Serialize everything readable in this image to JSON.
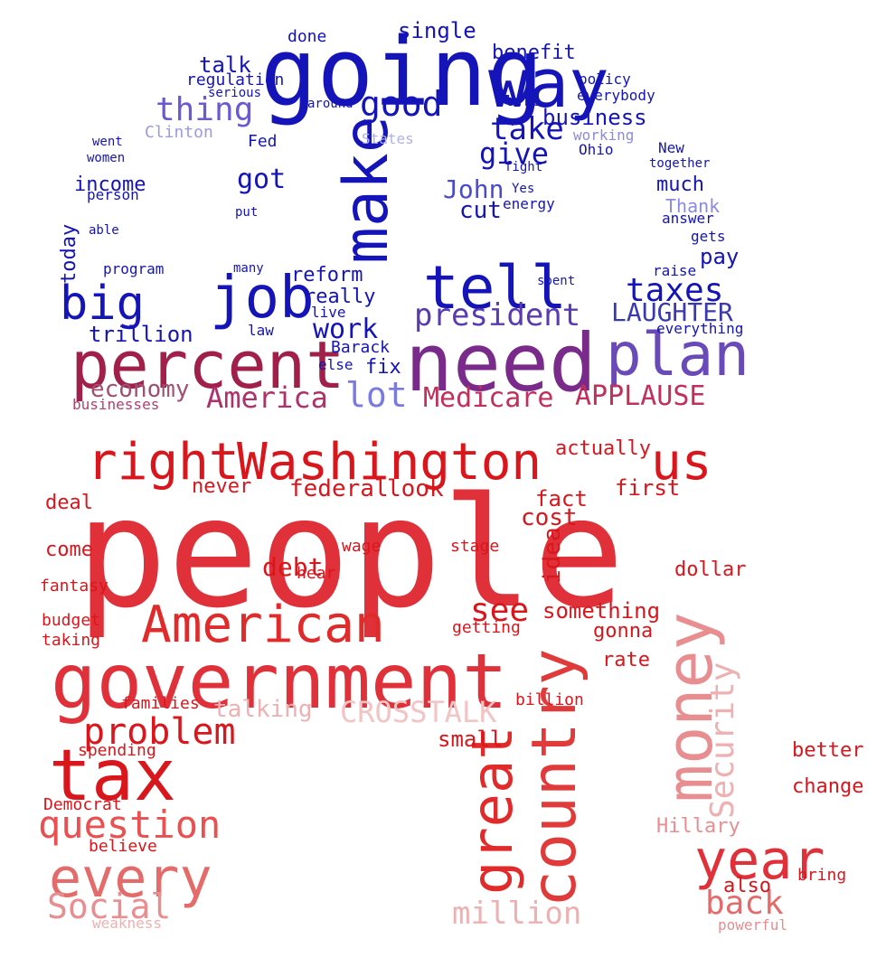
{
  "words": [
    {
      "t": "people",
      "c": "#e0313a"
    },
    {
      "t": "government",
      "c": "#e0313a"
    },
    {
      "t": "tax",
      "c": "#d9161c"
    },
    {
      "t": "money",
      "c": "#e88d90"
    },
    {
      "t": "country",
      "c": "#e03a3a"
    },
    {
      "t": "great",
      "c": "#e12a2a"
    },
    {
      "t": "year",
      "c": "#e0313a"
    },
    {
      "t": "every",
      "c": "#e56a6a"
    },
    {
      "t": "question",
      "c": "#ea5050"
    },
    {
      "t": "American",
      "c": "#e12a2a"
    },
    {
      "t": "right",
      "c": "#d9161c"
    },
    {
      "t": "Washington",
      "c": "#d9161c"
    },
    {
      "t": "us",
      "c": "#d9161c"
    },
    {
      "t": "problem",
      "c": "#d9161c"
    },
    {
      "t": "Social",
      "c": "#e88d90"
    },
    {
      "t": "Security",
      "c": "#eeb0b0"
    },
    {
      "t": "CROSSTALK",
      "c": "#f2c4c4"
    },
    {
      "t": "million",
      "c": "#eeb0b0"
    },
    {
      "t": "back",
      "c": "#e56a6a"
    },
    {
      "t": "see",
      "c": "#d9161c"
    },
    {
      "t": "debt",
      "c": "#d9161c"
    },
    {
      "t": "talking",
      "c": "#eeb0b0"
    },
    {
      "t": "federal",
      "c": "#d9161c"
    },
    {
      "t": "look",
      "c": "#d9161c"
    },
    {
      "t": "deal",
      "c": "#d9161c"
    },
    {
      "t": "come",
      "c": "#d9161c"
    },
    {
      "t": "never",
      "c": "#d9161c"
    },
    {
      "t": "cost",
      "c": "#d9161c"
    },
    {
      "t": "fact",
      "c": "#d9161c"
    },
    {
      "t": "idea",
      "c": "#d9161c"
    },
    {
      "t": "something",
      "c": "#d9161c"
    },
    {
      "t": "gonna",
      "c": "#d9161c"
    },
    {
      "t": "rate",
      "c": "#d9161c"
    },
    {
      "t": "dollar",
      "c": "#d9161c"
    },
    {
      "t": "first",
      "c": "#d9161c"
    },
    {
      "t": "actually",
      "c": "#d9161c"
    },
    {
      "t": "better",
      "c": "#d9161c"
    },
    {
      "t": "change",
      "c": "#d9161c"
    },
    {
      "t": "Hillary",
      "c": "#e88d90"
    },
    {
      "t": "bring",
      "c": "#d9161c"
    },
    {
      "t": "also",
      "c": "#d9161c"
    },
    {
      "t": "powerful",
      "c": "#e88d90"
    },
    {
      "t": "small",
      "c": "#d9161c"
    },
    {
      "t": "spending",
      "c": "#d9161c"
    },
    {
      "t": "believe",
      "c": "#d9161c"
    },
    {
      "t": "families",
      "c": "#d9161c"
    },
    {
      "t": "budget",
      "c": "#d9161c"
    },
    {
      "t": "fantasy",
      "c": "#d9161c"
    },
    {
      "t": "taking",
      "c": "#d9161c"
    },
    {
      "t": "hear",
      "c": "#d9161c"
    },
    {
      "t": "wage",
      "c": "#d9161c"
    },
    {
      "t": "stage",
      "c": "#d9161c"
    },
    {
      "t": "getting",
      "c": "#d9161c"
    },
    {
      "t": "billion",
      "c": "#d9161c"
    },
    {
      "t": "Democrat",
      "c": "#d9161c"
    },
    {
      "t": "weakness",
      "c": "#eeb0b0"
    },
    {
      "t": "going",
      "c": "#1414b8"
    },
    {
      "t": "way",
      "c": "#1414b8"
    },
    {
      "t": "make",
      "c": "#1414b8"
    },
    {
      "t": "job",
      "c": "#1414b8"
    },
    {
      "t": "need",
      "c": "#7a2a8a"
    },
    {
      "t": "percent",
      "c": "#a0204a"
    },
    {
      "t": "plan",
      "c": "#6a4ab8"
    },
    {
      "t": "tell",
      "c": "#1414b8"
    },
    {
      "t": "big",
      "c": "#1414b8"
    },
    {
      "t": "good",
      "c": "#1414b8"
    },
    {
      "t": "thing",
      "c": "#6a5ad0"
    },
    {
      "t": "take",
      "c": "#1414b8"
    },
    {
      "t": "give",
      "c": "#1414b8"
    },
    {
      "t": "president",
      "c": "#5a3ab0"
    },
    {
      "t": "taxes",
      "c": "#1414b8"
    },
    {
      "t": "LAUGHTER",
      "c": "#3a3ab0"
    },
    {
      "t": "America",
      "c": "#b0306a"
    },
    {
      "t": "lot",
      "c": "#7a7ae0"
    },
    {
      "t": "Medicare",
      "c": "#c0305a"
    },
    {
      "t": "APPLAUSE",
      "c": "#c0305a"
    },
    {
      "t": "economy",
      "c": "#a05070"
    },
    {
      "t": "work",
      "c": "#1414b8"
    },
    {
      "t": "trillion",
      "c": "#1414b8"
    },
    {
      "t": "John",
      "c": "#4a4ad0"
    },
    {
      "t": "cut",
      "c": "#1414b8"
    },
    {
      "t": "got",
      "c": "#1414b8"
    },
    {
      "t": "pay",
      "c": "#1414b8"
    },
    {
      "t": "talk",
      "c": "#1414b8"
    },
    {
      "t": "business",
      "c": "#1414b8"
    },
    {
      "t": "single",
      "c": "#1414b8"
    },
    {
      "t": "benefit",
      "c": "#1414b8"
    },
    {
      "t": "reform",
      "c": "#1414b8"
    },
    {
      "t": "really",
      "c": "#1414b8"
    },
    {
      "t": "income",
      "c": "#1414b8"
    },
    {
      "t": "today",
      "c": "#1414b8"
    },
    {
      "t": "fix",
      "c": "#1414b8"
    },
    {
      "t": "much",
      "c": "#1414b8"
    },
    {
      "t": "raise",
      "c": "#1414b8"
    },
    {
      "t": "everything",
      "c": "#1414b8"
    },
    {
      "t": "regulation",
      "c": "#1414b8"
    },
    {
      "t": "policy",
      "c": "#1414b8"
    },
    {
      "t": "everybody",
      "c": "#1414b8"
    },
    {
      "t": "Clinton",
      "c": "#9a9ae0"
    },
    {
      "t": "Thank",
      "c": "#8a8ae0"
    },
    {
      "t": "States",
      "c": "#b0b0e8"
    },
    {
      "t": "Fed",
      "c": "#1414b8"
    },
    {
      "t": "Barack",
      "c": "#1414b8"
    },
    {
      "t": "businesses",
      "c": "#b04070"
    },
    {
      "t": "energy",
      "c": "#1414b8"
    },
    {
      "t": "Ohio",
      "c": "#1414b8"
    },
    {
      "t": "working",
      "c": "#8a8ae0"
    },
    {
      "t": "New",
      "c": "#1414b8"
    },
    {
      "t": "together",
      "c": "#1414b8"
    },
    {
      "t": "answer",
      "c": "#1414b8"
    },
    {
      "t": "gets",
      "c": "#1414b8"
    },
    {
      "t": "program",
      "c": "#1414b8"
    },
    {
      "t": "person",
      "c": "#1414b8"
    },
    {
      "t": "women",
      "c": "#1414b8"
    },
    {
      "t": "went",
      "c": "#1414b8"
    },
    {
      "t": "able",
      "c": "#1414b8"
    },
    {
      "t": "done",
      "c": "#1414b8"
    },
    {
      "t": "left",
      "c": "#1414b8"
    },
    {
      "t": "fight",
      "c": "#1414b8"
    },
    {
      "t": "Yes",
      "c": "#1414b8"
    },
    {
      "t": "law",
      "c": "#1414b8"
    },
    {
      "t": "live",
      "c": "#1414b8"
    },
    {
      "t": "else",
      "c": "#1414b8"
    },
    {
      "t": "many",
      "c": "#1414b8"
    },
    {
      "t": "put",
      "c": "#1414b8"
    },
    {
      "t": "spent",
      "c": "#1414b8"
    },
    {
      "t": "around",
      "c": "#1414b8"
    },
    {
      "t": "serious",
      "c": "#1414b8"
    }
  ]
}
